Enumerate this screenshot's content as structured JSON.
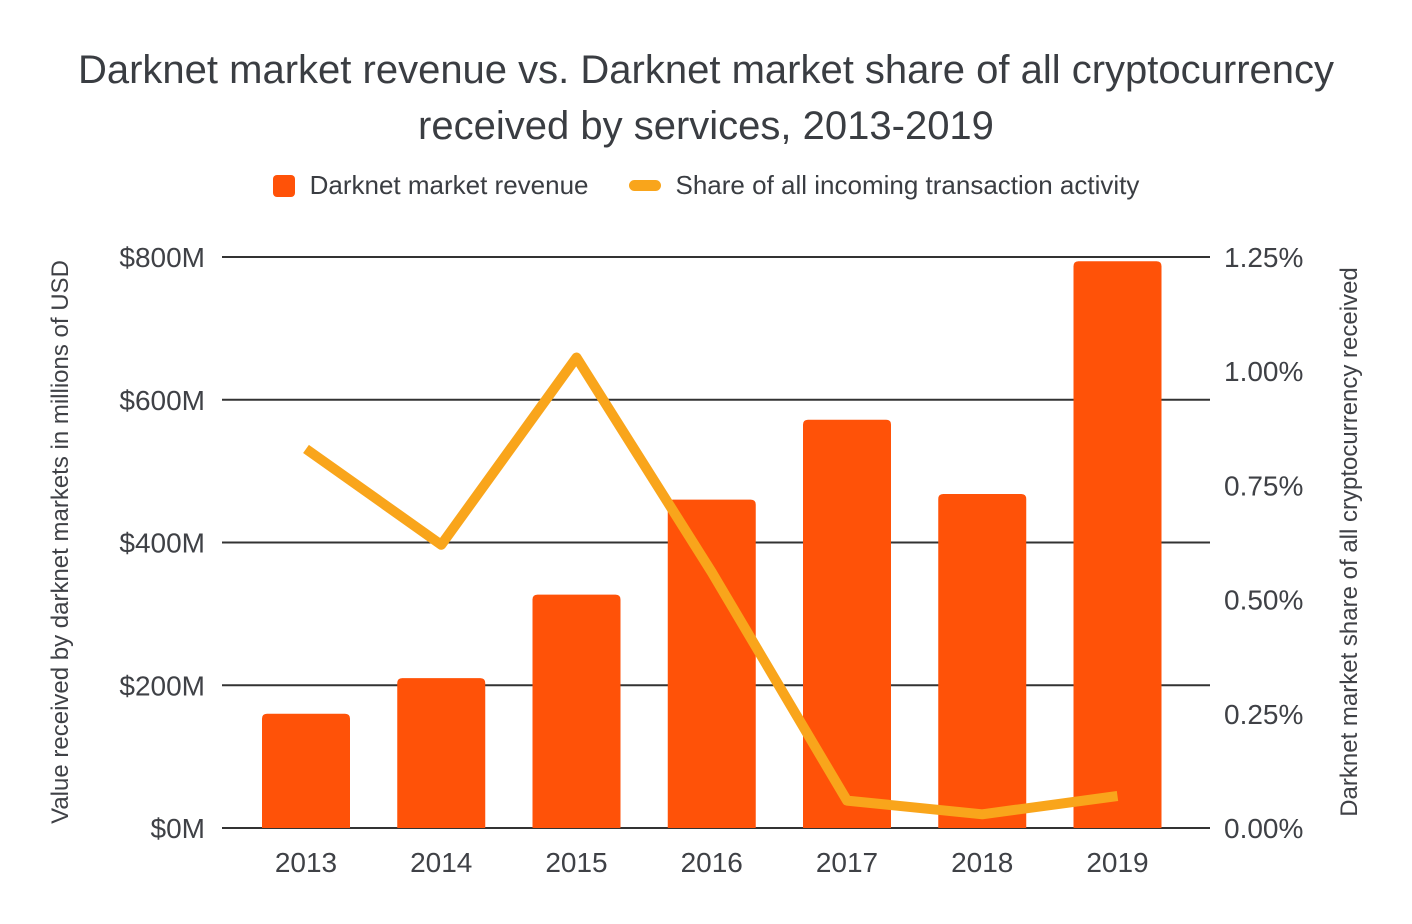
{
  "title": "Darknet market revenue vs. Darknet market share of all cryptocurrency received by services, 2013-2019",
  "legend": [
    {
      "label": "Darknet market revenue",
      "marker": "square"
    },
    {
      "label": "Share of all incoming transaction activity",
      "marker": "dash"
    }
  ],
  "colors": {
    "bar": "#FF5208",
    "line": "#F9A51B",
    "grid": "#333333",
    "text": "#3F4146",
    "background": "#FFFFFF"
  },
  "chart_data": {
    "type": "bar",
    "subtype": "dual-axis combo (bars + line)",
    "title": "Darknet market revenue vs. Darknet market share of all cryptocurrency received by services, 2013-2019",
    "categories": [
      "2013",
      "2014",
      "2015",
      "2016",
      "2017",
      "2018",
      "2019"
    ],
    "series": [
      {
        "name": "Darknet market revenue",
        "type": "bar",
        "axis": "left",
        "unit": "millions of USD",
        "values": [
          160,
          210,
          327,
          460,
          572,
          468,
          794
        ]
      },
      {
        "name": "Share of all incoming transaction activity",
        "type": "line",
        "axis": "right",
        "unit": "percent",
        "values": [
          0.83,
          0.62,
          1.03,
          0.56,
          0.06,
          0.03,
          0.07
        ]
      }
    ],
    "left_axis": {
      "label": "Value received by darknet markets in millions of USD",
      "tick_labels": [
        "$800M",
        "$600M",
        "$400M",
        "$200M",
        "$0M"
      ],
      "tick_values": [
        800,
        600,
        400,
        200,
        0
      ],
      "range": [
        0,
        800
      ]
    },
    "right_axis": {
      "label": "Darknet market share of all cryptocurrency received",
      "tick_labels": [
        "1.25%",
        "1.00%",
        "0.75%",
        "0.50%",
        "0.25%",
        "0.00%"
      ],
      "tick_values": [
        1.25,
        1.0,
        0.75,
        0.5,
        0.25,
        0
      ],
      "range": [
        0,
        1.25
      ]
    },
    "x_axis": {
      "tick_labels": [
        "2013",
        "2014",
        "2015",
        "2016",
        "2017",
        "2018",
        "2019"
      ]
    },
    "grid": true,
    "legend_position": "top"
  }
}
